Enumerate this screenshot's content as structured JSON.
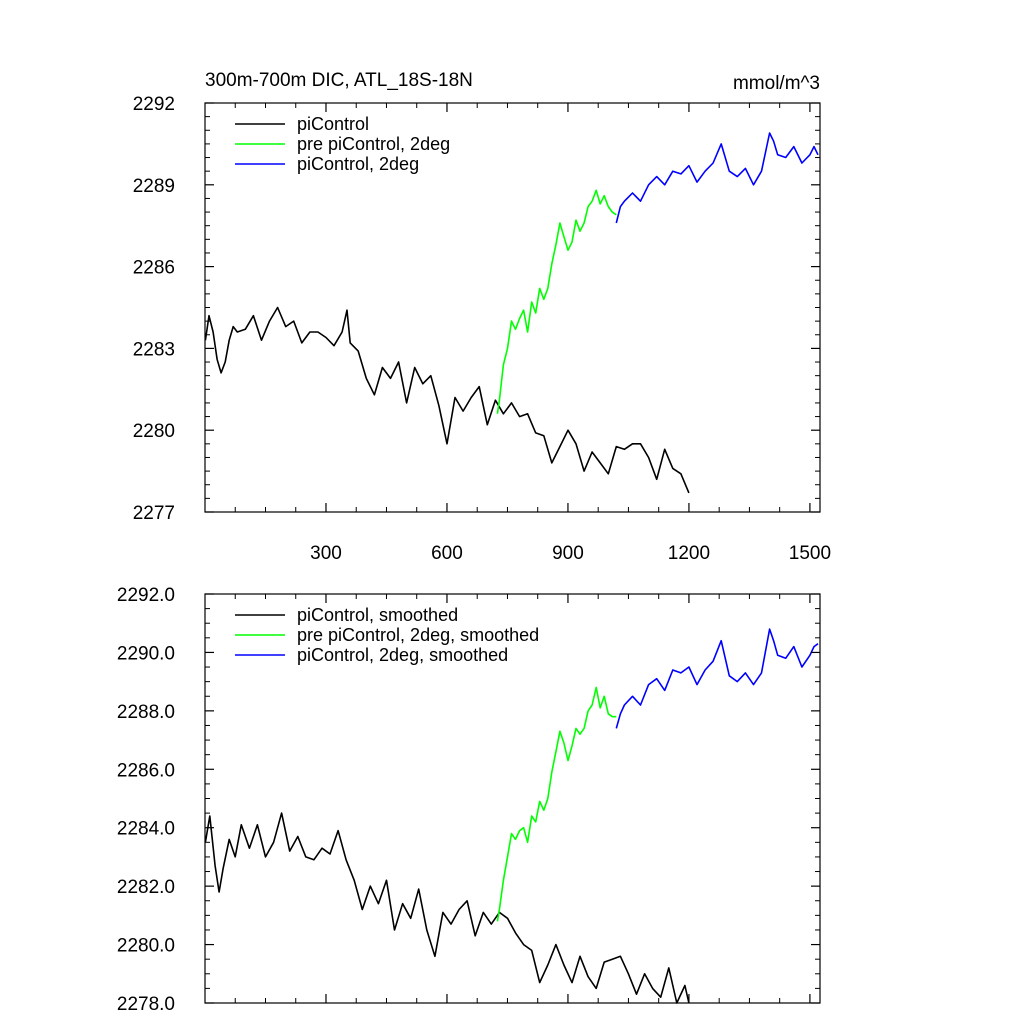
{
  "chart_data": [
    {
      "type": "line",
      "title": "300m-700m DIC, ATL_18S-18N",
      "units_label": "mmol/m^3",
      "xlabel": "",
      "ylabel": "",
      "xlim": [
        0,
        1525
      ],
      "ylim": [
        2277,
        2292
      ],
      "x_major_ticks": [
        300,
        600,
        900,
        1200,
        1500
      ],
      "x_tick_labels": [
        "300",
        "600",
        "900",
        "1200",
        "1500"
      ],
      "y_major_ticks": [
        2277,
        2280,
        2283,
        2286,
        2289,
        2292
      ],
      "y_tick_labels": [
        "2277",
        "2280",
        "2283",
        "2286",
        "2289",
        "2292"
      ],
      "legend_placement": "top-left",
      "series": [
        {
          "name": "piControl",
          "color": "#000000",
          "x": [
            1,
            10,
            20,
            30,
            40,
            50,
            60,
            70,
            80,
            100,
            120,
            140,
            160,
            180,
            200,
            220,
            240,
            260,
            280,
            300,
            320,
            340,
            352,
            360,
            380,
            400,
            420,
            440,
            460,
            480,
            500,
            520,
            540,
            560,
            580,
            600,
            620,
            640,
            660,
            680,
            700,
            720,
            740,
            760,
            780,
            800,
            820,
            840,
            860,
            880,
            900,
            920,
            940,
            960,
            980,
            1000,
            1020,
            1040,
            1060,
            1080,
            1100,
            1120,
            1140,
            1160,
            1180,
            1200
          ],
          "values": [
            2283.3,
            2284.2,
            2283.6,
            2282.6,
            2282.1,
            2282.5,
            2283.3,
            2283.8,
            2283.6,
            2283.7,
            2284.2,
            2283.3,
            2284.0,
            2284.5,
            2283.8,
            2284.0,
            2283.2,
            2283.6,
            2283.6,
            2283.4,
            2283.1,
            2283.6,
            2284.4,
            2283.2,
            2282.9,
            2281.9,
            2281.3,
            2282.3,
            2281.9,
            2282.5,
            2281.0,
            2282.3,
            2281.7,
            2282.0,
            2280.9,
            2279.5,
            2281.2,
            2280.7,
            2281.2,
            2281.6,
            2280.2,
            2281.1,
            2280.6,
            2281.0,
            2280.5,
            2280.6,
            2279.9,
            2279.8,
            2278.8,
            2279.4,
            2280.0,
            2279.5,
            2278.5,
            2279.2,
            2278.8,
            2278.4,
            2279.4,
            2279.3,
            2279.5,
            2279.5,
            2279.0,
            2278.2,
            2279.3,
            2278.6,
            2278.4,
            2277.7
          ]
        },
        {
          "name": "pre piControl, 2deg",
          "color": "#00ff00",
          "x": [
            725,
            730,
            740,
            750,
            760,
            770,
            780,
            790,
            800,
            810,
            820,
            830,
            840,
            850,
            860,
            870,
            880,
            890,
            900,
            910,
            920,
            930,
            940,
            950,
            960,
            970,
            980,
            990,
            1000,
            1010,
            1020
          ],
          "values": [
            2280.6,
            2281.1,
            2282.4,
            2283.0,
            2284.0,
            2283.7,
            2284.1,
            2284.4,
            2283.6,
            2284.7,
            2284.3,
            2285.2,
            2284.8,
            2285.2,
            2286.1,
            2286.8,
            2287.6,
            2287.1,
            2286.6,
            2286.9,
            2287.7,
            2287.3,
            2287.6,
            2288.2,
            2288.4,
            2288.8,
            2288.3,
            2288.6,
            2288.2,
            2288.0,
            2287.9
          ]
        },
        {
          "name": "piControl, 2deg",
          "color": "#0000ff",
          "x": [
            1020,
            1030,
            1040,
            1060,
            1080,
            1100,
            1120,
            1140,
            1160,
            1180,
            1200,
            1220,
            1240,
            1260,
            1280,
            1300,
            1320,
            1340,
            1360,
            1380,
            1400,
            1410,
            1420,
            1440,
            1460,
            1480,
            1500,
            1510,
            1520
          ],
          "values": [
            2287.6,
            2288.2,
            2288.4,
            2288.7,
            2288.4,
            2289.0,
            2289.3,
            2289.0,
            2289.5,
            2289.4,
            2289.7,
            2289.1,
            2289.5,
            2289.8,
            2290.5,
            2289.5,
            2289.3,
            2289.6,
            2289.0,
            2289.5,
            2290.9,
            2290.6,
            2290.1,
            2290.0,
            2290.4,
            2289.8,
            2290.1,
            2290.4,
            2290.1
          ]
        }
      ]
    },
    {
      "type": "line",
      "title": "",
      "xlabel": "",
      "ylabel": "",
      "xlim": [
        0,
        1525
      ],
      "ylim": [
        2278,
        2292
      ],
      "x_major_ticks": [
        300,
        600,
        900,
        1200,
        1500
      ],
      "x_tick_labels": [],
      "y_major_ticks": [
        2278,
        2280,
        2282,
        2284,
        2286,
        2288,
        2290,
        2292
      ],
      "y_tick_labels": [
        "2278.0",
        "2280.0",
        "2282.0",
        "2284.0",
        "2286.0",
        "2288.0",
        "2290.0",
        "2292.0"
      ],
      "legend_placement": "top-left",
      "series": [
        {
          "name": "piControl, smoothed",
          "color": "#000000",
          "x": [
            1,
            12,
            25,
            35,
            45,
            60,
            75,
            90,
            110,
            130,
            150,
            170,
            190,
            210,
            230,
            250,
            270,
            290,
            310,
            330,
            350,
            370,
            390,
            410,
            430,
            450,
            470,
            490,
            510,
            530,
            550,
            570,
            590,
            610,
            630,
            650,
            670,
            690,
            710,
            730,
            750,
            770,
            790,
            810,
            830,
            850,
            870,
            890,
            910,
            930,
            950,
            970,
            990,
            1010,
            1030,
            1050,
            1070,
            1090,
            1110,
            1130,
            1150,
            1170,
            1190,
            1200
          ],
          "values": [
            2283.5,
            2284.4,
            2282.7,
            2281.8,
            2282.6,
            2283.6,
            2283.0,
            2284.1,
            2283.3,
            2284.1,
            2283.0,
            2283.5,
            2284.5,
            2283.2,
            2283.7,
            2283.0,
            2282.9,
            2283.3,
            2283.1,
            2283.9,
            2282.9,
            2282.2,
            2281.2,
            2282.0,
            2281.4,
            2282.2,
            2280.5,
            2281.4,
            2280.9,
            2281.9,
            2280.5,
            2279.6,
            2281.1,
            2280.7,
            2281.2,
            2281.5,
            2280.3,
            2281.1,
            2280.7,
            2281.1,
            2280.9,
            2280.4,
            2280.0,
            2279.8,
            2278.7,
            2279.3,
            2280.0,
            2279.3,
            2278.7,
            2279.6,
            2278.9,
            2278.5,
            2279.4,
            2279.5,
            2279.6,
            2279.0,
            2278.3,
            2279.0,
            2278.5,
            2278.2,
            2279.2,
            2278.0,
            2278.6,
            2278.0
          ]
        },
        {
          "name": "pre piControl, 2deg, smoothed",
          "color": "#00ff00",
          "x": [
            725,
            730,
            740,
            750,
            760,
            770,
            780,
            790,
            800,
            810,
            820,
            830,
            840,
            850,
            860,
            870,
            880,
            890,
            900,
            910,
            920,
            930,
            940,
            950,
            960,
            970,
            980,
            990,
            1000,
            1010,
            1020
          ],
          "values": [
            2280.8,
            2281.2,
            2282.2,
            2283.0,
            2283.8,
            2283.6,
            2283.9,
            2284.0,
            2283.5,
            2284.4,
            2284.2,
            2284.9,
            2284.6,
            2285.0,
            2285.9,
            2286.6,
            2287.3,
            2286.9,
            2286.3,
            2286.8,
            2287.4,
            2287.2,
            2287.4,
            2288.0,
            2288.2,
            2288.8,
            2288.1,
            2288.5,
            2287.9,
            2287.8,
            2287.8
          ]
        },
        {
          "name": "piControl, 2deg, smoothed",
          "color": "#0000ff",
          "x": [
            1020,
            1030,
            1040,
            1060,
            1080,
            1100,
            1120,
            1140,
            1160,
            1180,
            1200,
            1220,
            1240,
            1260,
            1280,
            1300,
            1320,
            1340,
            1360,
            1380,
            1400,
            1410,
            1420,
            1440,
            1460,
            1480,
            1500,
            1510,
            1520
          ],
          "values": [
            2287.4,
            2287.9,
            2288.2,
            2288.5,
            2288.2,
            2288.9,
            2289.1,
            2288.7,
            2289.4,
            2289.3,
            2289.5,
            2288.9,
            2289.4,
            2289.7,
            2290.4,
            2289.2,
            2289.0,
            2289.3,
            2288.9,
            2289.3,
            2290.8,
            2290.4,
            2289.9,
            2289.8,
            2290.2,
            2289.5,
            2289.9,
            2290.2,
            2290.3
          ]
        }
      ]
    }
  ]
}
